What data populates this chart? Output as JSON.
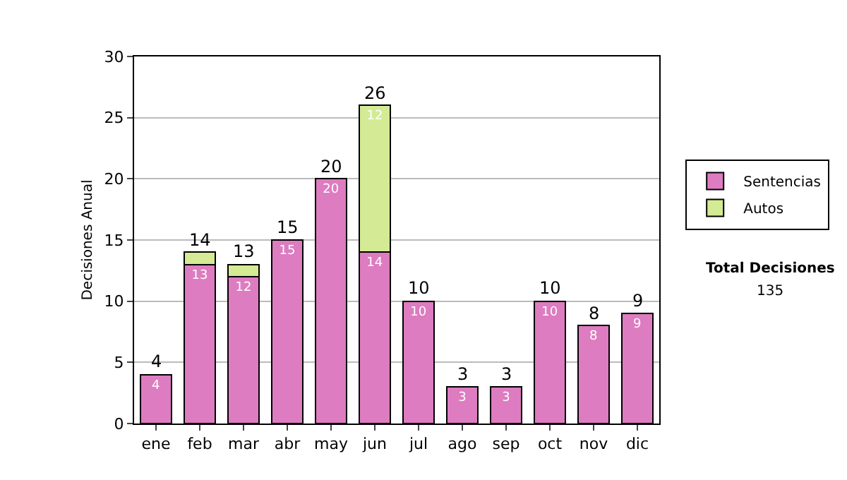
{
  "chart_data": {
    "type": "bar",
    "stacked": true,
    "ylabel": "Decisiones Anual",
    "categories": [
      "ene",
      "feb",
      "mar",
      "abr",
      "may",
      "jun",
      "jul",
      "ago",
      "sep",
      "oct",
      "nov",
      "dic"
    ],
    "series": [
      {
        "name": "Sentencias",
        "color": "#dd7cc0",
        "values": [
          4,
          13,
          12,
          15,
          20,
          14,
          10,
          3,
          3,
          10,
          8,
          9
        ],
        "value_labels": [
          "4",
          "13",
          "12",
          "15",
          "20",
          "14",
          "10",
          "3",
          "3",
          "10",
          "8",
          "9"
        ]
      },
      {
        "name": "Autos",
        "color": "#d4ea94",
        "values": [
          null,
          1,
          1,
          null,
          null,
          12,
          null,
          null,
          null,
          null,
          null,
          null
        ],
        "value_labels": [
          null,
          null,
          null,
          null,
          null,
          "12",
          null,
          null,
          null,
          null,
          null,
          null
        ]
      }
    ],
    "totals": [
      "4",
      "14",
      "13",
      "15",
      "20",
      "26",
      "10",
      "3",
      "3",
      "10",
      "8",
      "9"
    ],
    "ylim": [
      0,
      30
    ],
    "yticks": [
      0,
      5,
      10,
      15,
      20,
      25,
      30
    ],
    "grid": "y",
    "legend": "right",
    "annotations": [
      "Total Decisiones",
      "135"
    ]
  }
}
